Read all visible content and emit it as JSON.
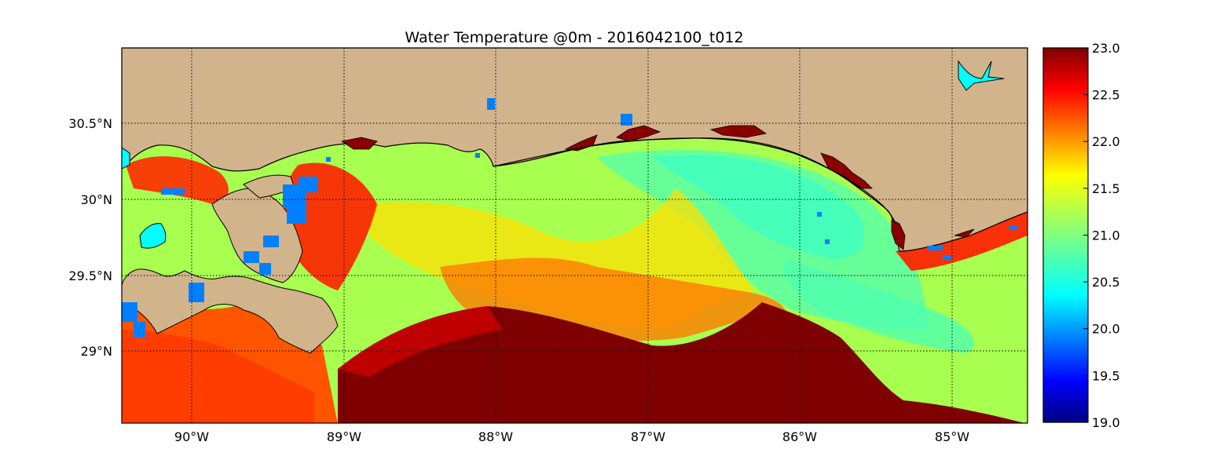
{
  "title": "Water Temperature @0m - 2016042100_t012",
  "map": {
    "lon_range": [
      -90.5,
      -84.5
    ],
    "lat_range": [
      28.53,
      30.99
    ],
    "grid": "dotted",
    "land_color": "#d2b48c",
    "coast_water_color": "#00ffff",
    "lon_ticks": [
      {
        "value": -90,
        "label": "90°W"
      },
      {
        "value": -89,
        "label": "89°W"
      },
      {
        "value": -88,
        "label": "88°W"
      },
      {
        "value": -87,
        "label": "87°W"
      },
      {
        "value": -86,
        "label": "86°W"
      },
      {
        "value": -85,
        "label": "85°W"
      }
    ],
    "lat_ticks": [
      {
        "value": 30.5,
        "label": "30.5°N"
      },
      {
        "value": 30.0,
        "label": "30°N"
      },
      {
        "value": 29.5,
        "label": "29.5°N"
      },
      {
        "value": 29.0,
        "label": "29°N"
      }
    ]
  },
  "colorbar": {
    "colormap": "jet",
    "min": 19.0,
    "max": 23.0,
    "ticks": [
      {
        "value": 19.0,
        "label": "19.0"
      },
      {
        "value": 19.5,
        "label": "19.5"
      },
      {
        "value": 20.0,
        "label": "20.0"
      },
      {
        "value": 20.5,
        "label": "20.5"
      },
      {
        "value": 21.0,
        "label": "21.0"
      },
      {
        "value": 21.5,
        "label": "21.5"
      },
      {
        "value": 22.0,
        "label": "22.0"
      },
      {
        "value": 22.5,
        "label": "22.5"
      },
      {
        "value": 23.0,
        "label": "23.0"
      }
    ]
  }
}
